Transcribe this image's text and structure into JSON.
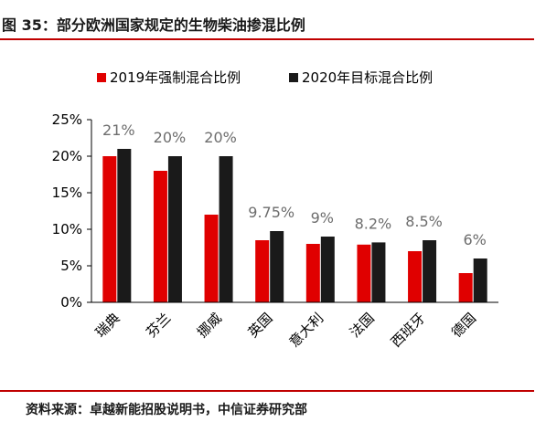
{
  "header": {
    "title": "图 35：部分欧洲国家规定的生物柴油掺混比例"
  },
  "footer": {
    "source": "资料来源：卓越新能招股说明书，中信证券研究部"
  },
  "colors": {
    "rule": "#c00000",
    "series_2019": "#e00000",
    "series_2020": "#1a1a1a",
    "label": "#6d6d6d"
  },
  "chart_data": {
    "type": "bar",
    "categories": [
      "瑞典",
      "芬兰",
      "挪威",
      "英国",
      "意大利",
      "法国",
      "西班牙",
      "德国"
    ],
    "series": [
      {
        "name": "2019年强制混合比例",
        "values": [
          20,
          18,
          12,
          8.5,
          8,
          7.9,
          7,
          4
        ]
      },
      {
        "name": "2020年目标混合比例",
        "values": [
          21,
          20,
          20,
          9.75,
          9,
          8.2,
          8.5,
          6
        ]
      }
    ],
    "data_labels": [
      "21%",
      "20%",
      "20%",
      "9.75%",
      "9%",
      "8.2%",
      "8.5%",
      "6%"
    ],
    "ylim": [
      0,
      25
    ],
    "yticks": [
      0,
      5,
      10,
      15,
      20,
      25
    ],
    "ytick_labels": [
      "0%",
      "5%",
      "10%",
      "15%",
      "20%",
      "25%"
    ],
    "legend_position": "top",
    "grid": false
  }
}
